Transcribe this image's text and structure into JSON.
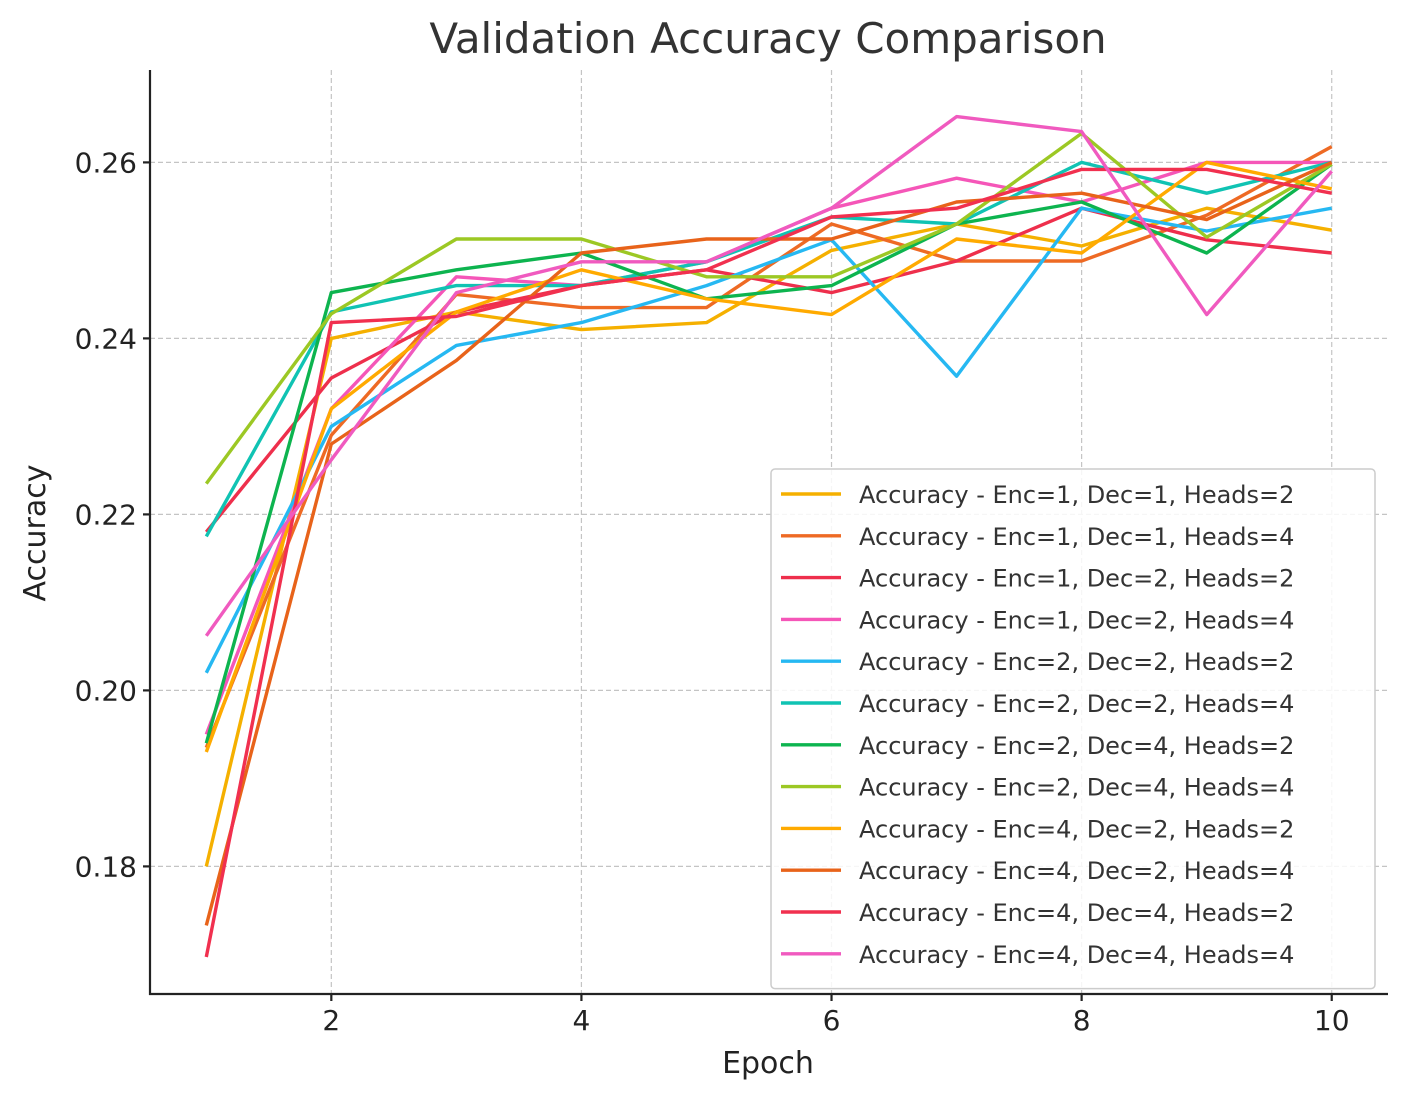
{
  "chart_data": {
    "type": "line",
    "title": "Validation Accuracy Comparison",
    "xlabel": "Epoch",
    "ylabel": "Accuracy",
    "xlim": [
      0.55,
      10.45
    ],
    "ylim": [
      0.1655,
      0.2705
    ],
    "x": [
      1,
      2,
      3,
      4,
      5,
      6,
      7,
      8,
      9,
      10
    ],
    "xticks": [
      2,
      4,
      6,
      8,
      10
    ],
    "xtick_labels": [
      "2",
      "4",
      "6",
      "8",
      "10"
    ],
    "yticks": [
      0.18,
      0.2,
      0.22,
      0.24,
      0.26
    ],
    "ytick_labels": [
      "0.18",
      "0.20",
      "0.22",
      "0.24",
      "0.26"
    ],
    "grid": true,
    "legend_position": "lower-right",
    "series": [
      {
        "name": "Accuracy - Enc=1, Dec=1, Heads=2",
        "color": "#F5B000",
        "values": [
          0.18,
          0.24,
          0.243,
          0.241,
          0.2418,
          0.25,
          0.253,
          0.2505,
          0.2548,
          0.2523
        ]
      },
      {
        "name": "Accuracy - Enc=1, Dec=1, Heads=4",
        "color": "#EE6A24",
        "values": [
          0.1935,
          0.229,
          0.245,
          0.2435,
          0.2435,
          0.253,
          0.2488,
          0.2488,
          0.254,
          0.2618
        ]
      },
      {
        "name": "Accuracy - Enc=1, Dec=2, Heads=2",
        "color": "#EE2F4C",
        "values": [
          0.218,
          0.2355,
          0.243,
          0.246,
          0.2478,
          0.2452,
          0.2488,
          0.2548,
          0.2512,
          0.2497
        ]
      },
      {
        "name": "Accuracy - Enc=1, Dec=2, Heads=4",
        "color": "#F556B8",
        "values": [
          0.195,
          0.232,
          0.247,
          0.246,
          0.2487,
          0.2548,
          0.2582,
          0.2555,
          0.26,
          0.26
        ]
      },
      {
        "name": "Accuracy - Enc=2, Dec=2, Heads=2",
        "color": "#26B8F2",
        "values": [
          0.202,
          0.23,
          0.2392,
          0.2418,
          0.246,
          0.2512,
          0.2357,
          0.2548,
          0.2522,
          0.2548
        ]
      },
      {
        "name": "Accuracy - Enc=2, Dec=2, Heads=4",
        "color": "#10C3B3",
        "values": [
          0.2175,
          0.243,
          0.246,
          0.246,
          0.2487,
          0.2538,
          0.253,
          0.26,
          0.2565,
          0.26
        ]
      },
      {
        "name": "Accuracy - Enc=2, Dec=4, Heads=2",
        "color": "#0DB44F",
        "values": [
          0.194,
          0.2452,
          0.2478,
          0.2497,
          0.2445,
          0.246,
          0.253,
          0.2555,
          0.2497,
          0.2598
        ]
      },
      {
        "name": "Accuracy - Enc=2, Dec=4, Heads=4",
        "color": "#9CC824",
        "values": [
          0.2235,
          0.2428,
          0.2513,
          0.2513,
          0.247,
          0.247,
          0.253,
          0.2633,
          0.2515,
          0.2598
        ]
      },
      {
        "name": "Accuracy - Enc=4, Dec=2, Heads=2",
        "color": "#FFAA00",
        "values": [
          0.193,
          0.232,
          0.243,
          0.2478,
          0.2445,
          0.2427,
          0.2513,
          0.2497,
          0.26,
          0.257
        ]
      },
      {
        "name": "Accuracy - Enc=4, Dec=2, Heads=4",
        "color": "#E8631A",
        "values": [
          0.1733,
          0.228,
          0.2375,
          0.2497,
          0.2513,
          0.2513,
          0.2555,
          0.2565,
          0.2535,
          0.26
        ]
      },
      {
        "name": "Accuracy - Enc=4, Dec=4, Heads=2",
        "color": "#F1304F",
        "values": [
          0.1697,
          0.2418,
          0.2425,
          0.246,
          0.2478,
          0.2538,
          0.2548,
          0.2592,
          0.2592,
          0.2565
        ]
      },
      {
        "name": "Accuracy - Enc=4, Dec=4, Heads=4",
        "color": "#F05ABF",
        "values": [
          0.2062,
          0.2262,
          0.2452,
          0.2487,
          0.2487,
          0.2548,
          0.2652,
          0.2635,
          0.2427,
          0.259
        ]
      }
    ]
  }
}
